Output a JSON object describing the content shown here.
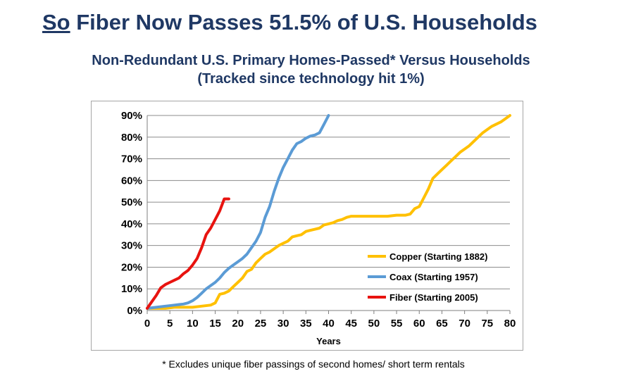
{
  "header": {
    "title_underlined": "So",
    "title_rest": " Fiber Now Passes 51.5% of U.S. Households",
    "subtitle_line1": "Non-Redundant U.S. Primary Homes-Passed* Versus Households",
    "subtitle_line2": "(Tracked since technology hit 1%)"
  },
  "footnote": {
    "star": "*",
    "text": " Excludes unique fiber passings of second homes/ short term rentals"
  },
  "chart_data": {
    "type": "line",
    "title": "Non-Redundant U.S. Primary Homes-Passed* Versus Households",
    "xlabel": "Years",
    "ylabel": "",
    "xlim": [
      0,
      80
    ],
    "ylim": [
      0,
      90
    ],
    "x_ticks": [
      0,
      5,
      10,
      15,
      20,
      25,
      30,
      35,
      40,
      45,
      50,
      55,
      60,
      65,
      70,
      75,
      80
    ],
    "y_ticks": [
      0,
      10,
      20,
      30,
      40,
      50,
      60,
      70,
      80,
      90
    ],
    "y_tick_labels": [
      "0%",
      "10%",
      "20%",
      "30%",
      "40%",
      "50%",
      "60%",
      "70%",
      "80%",
      "90%"
    ],
    "grid": "horizontal",
    "legend_position": "bottom-right",
    "series": [
      {
        "name": "Copper (Starting 1882)",
        "color": "#ffc000",
        "x": [
          0,
          2,
          4,
          6,
          8,
          10,
          12,
          14,
          15,
          16,
          17,
          18,
          19,
          20,
          21,
          22,
          23,
          24,
          25,
          26,
          27,
          28,
          29,
          30,
          31,
          32,
          33,
          34,
          35,
          36,
          37,
          38,
          39,
          40,
          41,
          42,
          43,
          44,
          45,
          47,
          50,
          53,
          55,
          57,
          58,
          59,
          60,
          61,
          62,
          63,
          64,
          65,
          66,
          67,
          68,
          69,
          70,
          71,
          72,
          73,
          74,
          75,
          76,
          77,
          78,
          79,
          80
        ],
        "values": [
          1,
          1,
          1,
          1.5,
          1.5,
          1.5,
          2,
          2.5,
          3.5,
          7.5,
          8,
          9,
          11,
          13,
          15,
          18,
          19,
          22,
          24,
          26,
          27,
          28.5,
          30,
          31,
          32,
          34,
          34.5,
          35,
          36.5,
          37,
          37.5,
          38,
          39.5,
          40,
          40.5,
          41.5,
          42,
          43,
          43.5,
          43.5,
          43.5,
          43.5,
          44,
          44,
          44.5,
          47,
          48,
          52,
          56,
          61,
          63,
          65,
          67,
          69,
          71,
          73,
          74.5,
          76,
          78,
          80,
          82,
          83.5,
          85,
          86,
          87,
          88.5,
          90
        ]
      },
      {
        "name": "Coax (Starting 1957)",
        "color": "#5b9bd5",
        "x": [
          0,
          2,
          4,
          6,
          8,
          9,
          10,
          11,
          12,
          13,
          14,
          15,
          16,
          17,
          18,
          19,
          20,
          21,
          22,
          23,
          24,
          25,
          26,
          27,
          28,
          29,
          30,
          31,
          32,
          33,
          34,
          35,
          36,
          37,
          38,
          39,
          40
        ],
        "values": [
          1,
          1.5,
          2,
          2.5,
          3,
          3.5,
          4.5,
          6,
          8,
          10,
          11.5,
          13,
          15,
          17.5,
          19.5,
          21,
          22.5,
          24,
          26,
          29,
          32,
          36,
          43,
          48,
          55,
          61,
          66,
          70,
          74,
          77,
          78,
          79.5,
          80.5,
          81,
          82,
          86,
          90
        ]
      },
      {
        "name": "Fiber (Starting 2005)",
        "color": "#e8130f",
        "x": [
          0,
          1,
          2,
          3,
          4,
          5,
          6,
          7,
          8,
          9,
          10,
          11,
          12,
          13,
          14,
          15,
          16,
          17,
          18
        ],
        "values": [
          1,
          4,
          7,
          10.5,
          12,
          13,
          14,
          15,
          17,
          18.5,
          21,
          24,
          29,
          35,
          38,
          42,
          46,
          51.5,
          51.5
        ]
      }
    ]
  }
}
